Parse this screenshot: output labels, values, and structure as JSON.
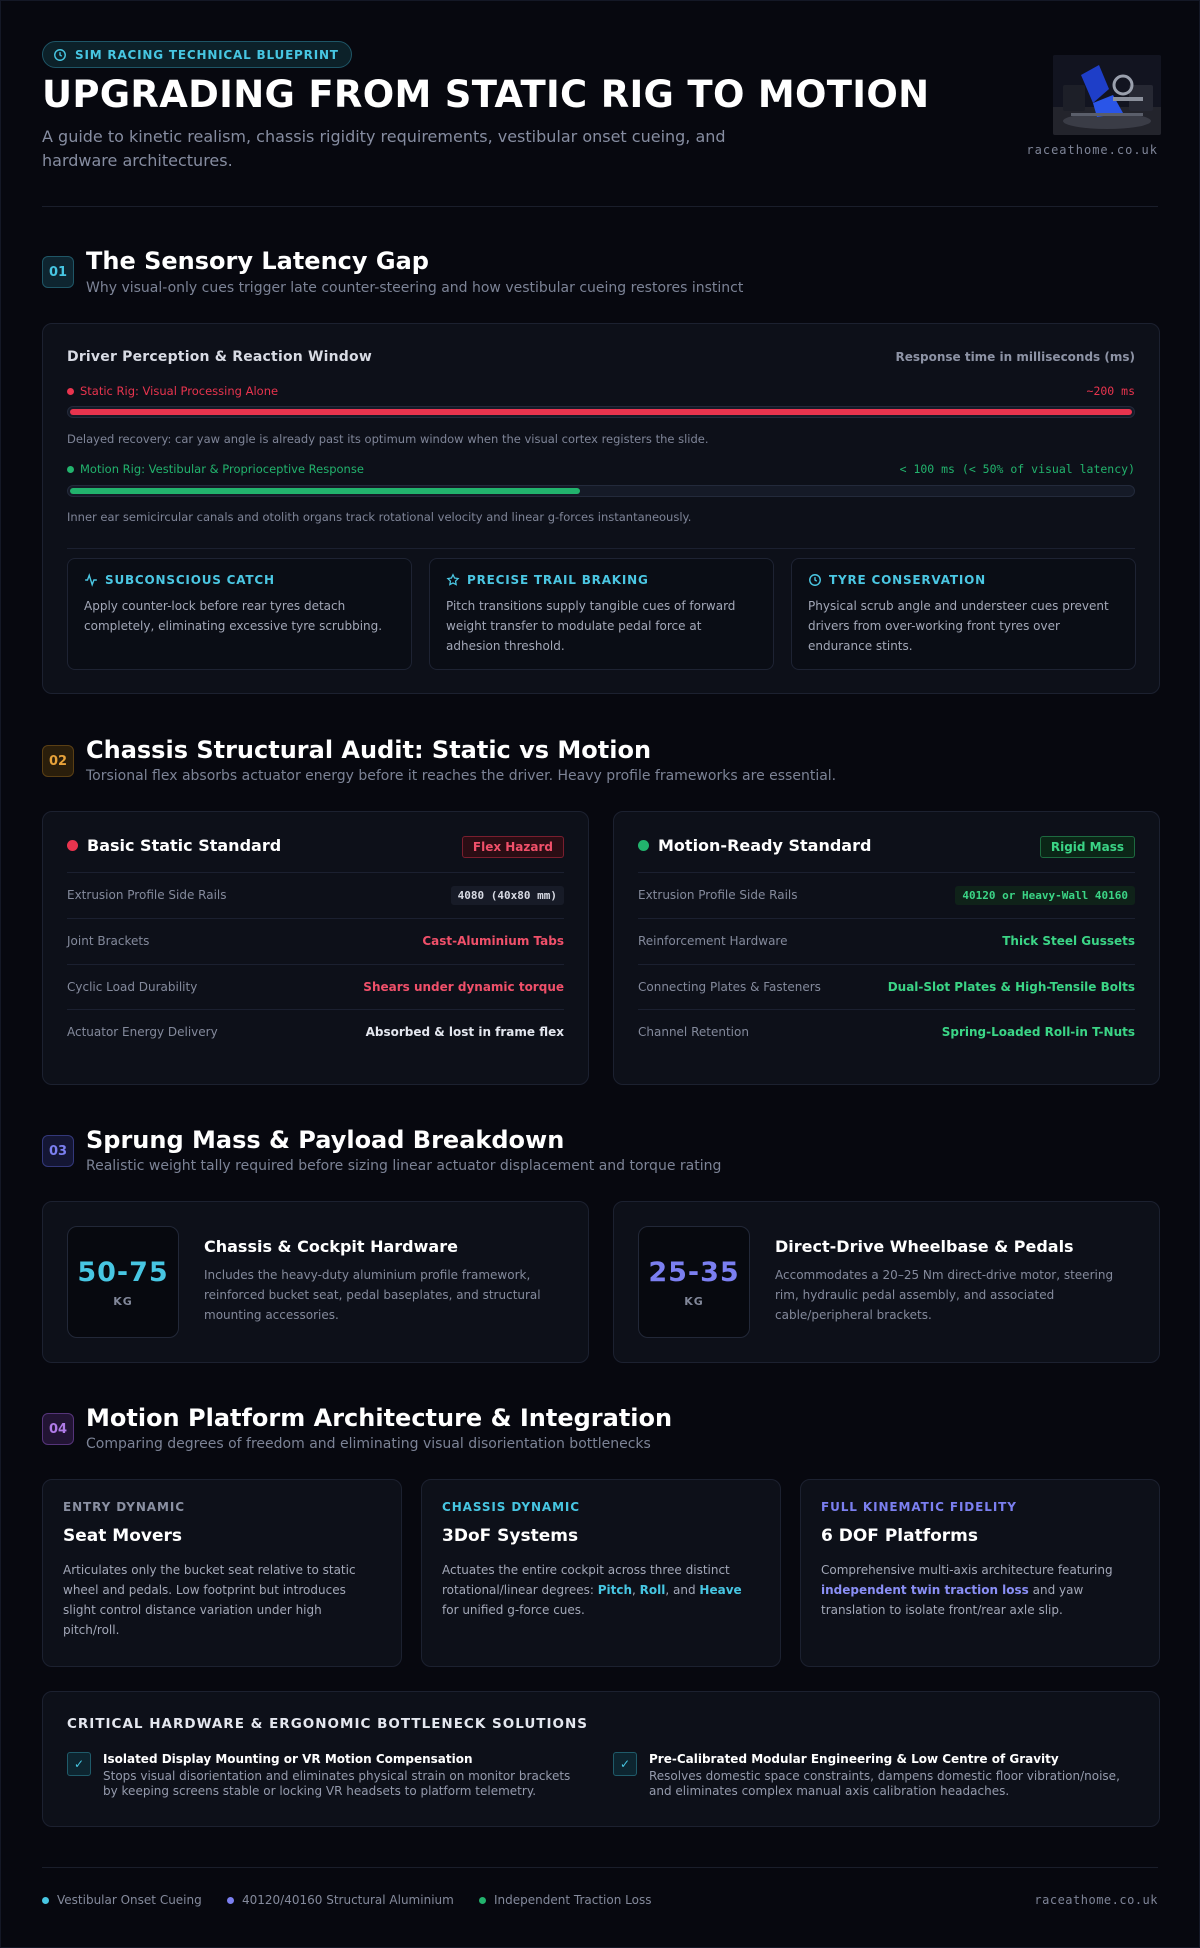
{
  "header": {
    "badge": "SIM RACING TECHNICAL BLUEPRINT",
    "title": "UPGRADING FROM STATIC RIG TO MOTION",
    "subtitle": "A guide to kinetic realism, chassis rigidity requirements, vestibular onset cueing, and hardware architectures.",
    "site": "raceathome.co.uk"
  },
  "section1": {
    "num": "01",
    "title": "The Sensory Latency Gap",
    "subtitle": "Why visual-only cues trigger late counter-steering and how vestibular cueing restores instinct",
    "card_title": "Driver Perception & Reaction Window",
    "units": "Response time in milliseconds (ms)",
    "bars": [
      {
        "label": "Static Rig: Visual Processing Alone",
        "value_text": "~200 ms",
        "fraction": 1.0,
        "note": "Delayed recovery: car yaw angle is already past its optimum window when the visual cortex registers the slide.",
        "color": "#e8344e"
      },
      {
        "label": "Motion Rig: Vestibular & Proprioceptive Response",
        "value_text": "< 100 ms (< 50% of visual latency)",
        "fraction": 0.48,
        "note": "Inner ear semicircular canals and otolith organs track rotational velocity and linear g-forces instantaneously.",
        "color": "#22b36d"
      }
    ],
    "features": [
      {
        "icon": "activity-icon",
        "title": "SUBCONSCIOUS CATCH",
        "body": "Apply counter-lock before rear tyres detach completely, eliminating excessive tyre scrubbing."
      },
      {
        "icon": "star-icon",
        "title": "PRECISE TRAIL BRAKING",
        "body": "Pitch transitions supply tangible cues of forward weight transfer to modulate pedal force at adhesion threshold."
      },
      {
        "icon": "clock-icon",
        "title": "TYRE CONSERVATION",
        "body": "Physical scrub angle and understeer cues prevent drivers from over-working front tyres over endurance stints."
      }
    ]
  },
  "section2": {
    "num": "02",
    "title": "Chassis Structural Audit: Static vs Motion",
    "subtitle": "Torsional flex absorbs actuator energy before it reaches the driver. Heavy profile frameworks are essential.",
    "static": {
      "title": "Basic Static Standard",
      "tag": "Flex Hazard",
      "rows": [
        {
          "key": "Extrusion Profile Side Rails",
          "value": "4080 (40x80 mm)"
        },
        {
          "key": "Joint Brackets",
          "value": "Cast-Aluminium Tabs"
        },
        {
          "key": "Cyclic Load Durability",
          "value": "Shears under dynamic torque"
        },
        {
          "key": "Actuator Energy Delivery",
          "value": "Absorbed & lost in frame flex"
        }
      ]
    },
    "motion": {
      "title": "Motion-Ready Standard",
      "tag": "Rigid Mass",
      "rows": [
        {
          "key": "Extrusion Profile Side Rails",
          "value": "40120 or Heavy-Wall 40160"
        },
        {
          "key": "Reinforcement Hardware",
          "value": "Thick Steel Gussets"
        },
        {
          "key": "Connecting Plates & Fasteners",
          "value": "Dual-Slot Plates & High-Tensile Bolts"
        },
        {
          "key": "Channel Retention",
          "value": "Spring-Loaded Roll-in T-Nuts"
        }
      ]
    }
  },
  "section3": {
    "num": "03",
    "title": "Sprung Mass & Payload Breakdown",
    "subtitle": "Realistic weight tally required before sizing linear actuator displacement and torque rating",
    "cards": [
      {
        "num": "50-75",
        "unit": "KG",
        "title": "Chassis & Cockpit Hardware",
        "body": "Includes the heavy-duty aluminium profile framework, reinforced bucket seat, pedal baseplates, and structural mounting accessories.",
        "color": "#47c6e2"
      },
      {
        "num": "25-35",
        "unit": "KG",
        "title": "Direct-Drive Wheelbase & Pedals",
        "body": "Accommodates a 20–25 Nm direct-drive motor, steering rim, hydraulic pedal assembly, and associated cable/peripheral brackets.",
        "color": "#7b7ff0"
      }
    ]
  },
  "section4": {
    "num": "04",
    "title": "Motion Platform Architecture & Integration",
    "subtitle": "Comparing degrees of freedom and eliminating visual disorientation bottlenecks",
    "platforms": [
      {
        "kicker": "ENTRY DYNAMIC",
        "title": "Seat Movers",
        "body": "Articulates only the bucket seat relative to static wheel and pedals. Low footprint but introduces slight control distance variation under high pitch/roll.",
        "color": "#8a90a2"
      },
      {
        "kicker": "CHASSIS DYNAMIC",
        "title": "3DoF Systems",
        "body_pre": "Actuates the entire cockpit across three distinct rotational/linear degrees: ",
        "hl1": "Pitch",
        "sep1": ", ",
        "hl2": "Roll",
        "sep2": ", and ",
        "hl3": "Heave",
        "body_post": " for unified g-force cues.",
        "color": "#47c6e2"
      },
      {
        "kicker": "FULL KINEMATIC FIDELITY",
        "title": "6 DOF Platforms",
        "body_pre": "Comprehensive multi-axis architecture featuring ",
        "hl1": "independent twin traction loss",
        "body_post": " and yaw translation to isolate front/rear axle slip.",
        "color": "#7b7ff0"
      }
    ],
    "bottleneck": {
      "title": "CRITICAL HARDWARE & ERGONOMIC BOTTLENECK SOLUTIONS",
      "items": [
        {
          "title": "Isolated Display Mounting or VR Motion Compensation",
          "body": "Stops visual disorientation and eliminates physical strain on monitor brackets by keeping screens stable or locking VR headsets to platform telemetry."
        },
        {
          "title": "Pre-Calibrated Modular Engineering & Low Centre of Gravity",
          "body": "Resolves domestic space constraints, dampens domestic floor vibration/noise, and eliminates complex manual axis calibration headaches."
        }
      ]
    }
  },
  "footer": {
    "items": [
      {
        "label": "Vestibular Onset Cueing",
        "color": "#47c6e2"
      },
      {
        "label": "40120/40160 Structural Aluminium",
        "color": "#7b7ff0"
      },
      {
        "label": "Independent Traction Loss",
        "color": "#22b36d"
      }
    ],
    "site": "raceathome.co.uk"
  }
}
